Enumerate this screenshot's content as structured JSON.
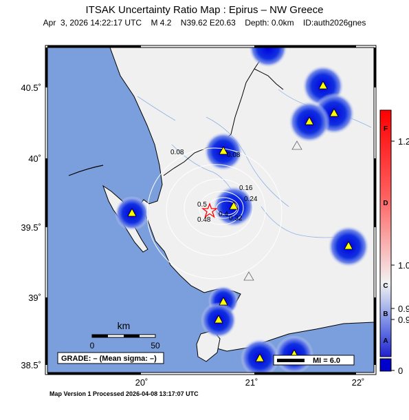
{
  "header": {
    "title": "ITSAK Uncertainty Ratio Map : Epirus – NW Greece",
    "date": "Apr  3, 2026 14:22:17 UTC",
    "magnitude": "M 4.2",
    "location": "N39.62 E20.63",
    "depth": "Depth: 0.0km",
    "event_id": "ID:auth2026gnes"
  },
  "axes": {
    "lat_labels": [
      "40.5˚",
      "40˚",
      "39.5˚",
      "39˚",
      "38.5˚"
    ],
    "lon_labels": [
      "20˚",
      "21˚",
      "22˚"
    ]
  },
  "contour_labels": [
    "0.08",
    "0.08",
    "0.16",
    "0.24",
    "0.5",
    "0.48",
    "0.4",
    "0.32"
  ],
  "colorbar": {
    "values": [
      "1.2",
      "1.0",
      "0.9",
      "0.9",
      "0"
    ],
    "grades": [
      "F",
      "D",
      "C",
      "B",
      "A"
    ],
    "colors": {
      "top": "#ff0000",
      "mid": "#f2f2f2",
      "bottom": "#0000cc"
    }
  },
  "scale_bar": {
    "unit": "km",
    "start": "0",
    "end": "50"
  },
  "grade_box": {
    "text": "GRADE: – (Mean sigma: –)"
  },
  "mi_legend": {
    "text": "MI = 6.0"
  },
  "footer": {
    "text": "Map Version 1 Processed 2026-04-08 13:17:07 UTC"
  },
  "colors": {
    "sea": "#7b9fdc",
    "land": "#f0f0f0",
    "station": "#ffff00",
    "epicenter": "#ff0000",
    "blob": "#0000dd"
  }
}
